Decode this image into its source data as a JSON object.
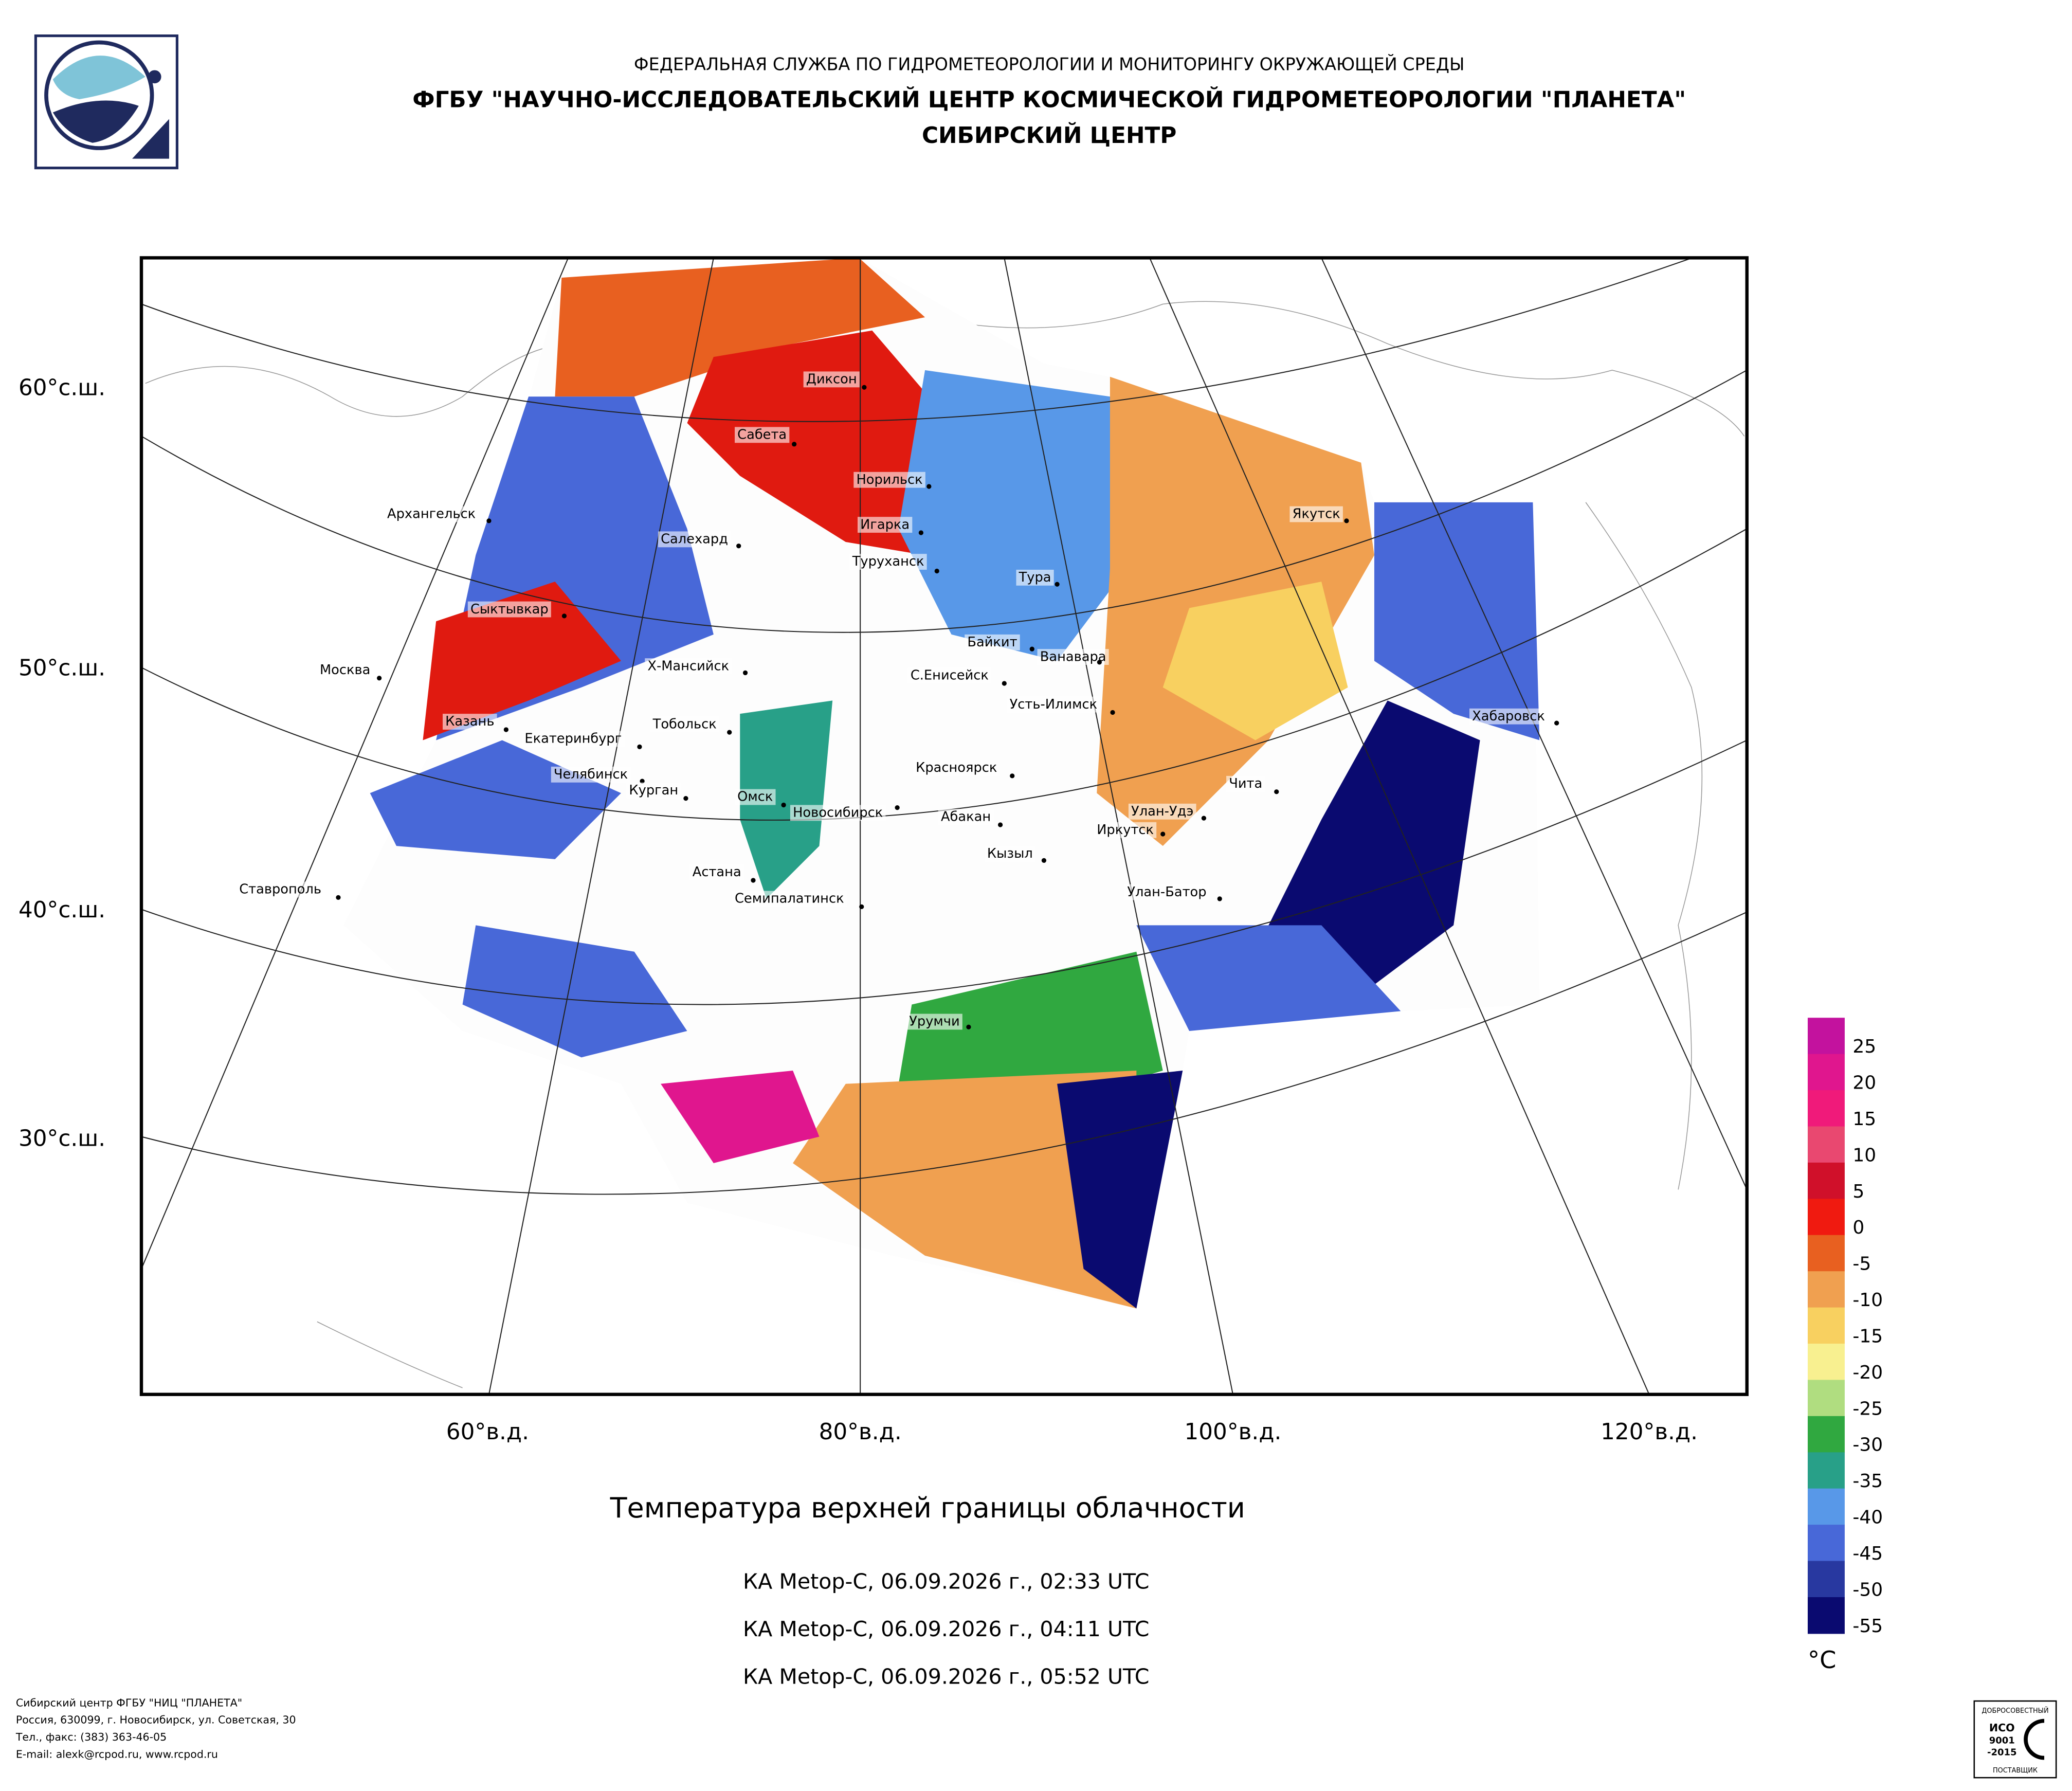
{
  "header": {
    "agency": "ФЕДЕРАЛЬНАЯ СЛУЖБА ПО ГИДРОМЕТЕОРОЛОГИИ И МОНИТОРИНГУ ОКРУЖАЮЩЕЙ СРЕДЫ",
    "center": "ФГБУ \"НАУЧНО-ИССЛЕДОВАТЕЛЬСКИЙ ЦЕНТР КОСМИЧЕСКОЙ ГИДРОМЕТЕОРОЛОГИИ \"ПЛАНЕТА\"",
    "branch": "СИБИРСКИЙ ЦЕНТР"
  },
  "map": {
    "lat_labels": [
      "60°с.ш.",
      "50°с.ш.",
      "40°с.ш.",
      "30°с.ш."
    ],
    "lon_labels": [
      "60°в.д.",
      "80°в.д.",
      "100°в.д.",
      "120°в.д."
    ],
    "cities": [
      "Диксон",
      "Сабета",
      "Норильск",
      "Игарка",
      "Салехард",
      "Архангельск",
      "Туруханск",
      "Тура",
      "Якутск",
      "Сыктывкар",
      "Байкит",
      "Ванавара",
      "Москва",
      "Х-Мансийск",
      "С.Енисейск",
      "Усть-Илимск",
      "Хабаровск",
      "Казань",
      "Тобольск",
      "Екатеринбург",
      "Красноярск",
      "Челябинск",
      "Чита",
      "Курган",
      "Омск",
      "Новосибирск",
      "Улан-Удэ",
      "Абакан",
      "Иркутск",
      "Кызыл",
      "Астана",
      "Ставрополь",
      "Улан-Батор",
      "Семипалатинск",
      "Урумчи"
    ]
  },
  "title": "Температура верхней границы облачности",
  "passes": [
    "КА Metop-C, 06.09.2026 г., 02:33 UTC",
    "КА Metop-C, 06.09.2026 г., 04:11 UTC",
    "КА Metop-C, 06.09.2026 г., 05:52 UTC"
  ],
  "legend": {
    "unit": "°C",
    "ticks": [
      25,
      20,
      15,
      10,
      5,
      0,
      -5,
      -10,
      -15,
      -20,
      -25,
      -30,
      -35,
      -40,
      -45,
      -50,
      -55
    ],
    "colors": [
      "#c3129e",
      "#e0168e",
      "#f01a7a",
      "#e94870",
      "#d0102a",
      "#f01a10",
      "#e86020",
      "#f0a050",
      "#f8d060",
      "#f8f090",
      "#b0dd80",
      "#30a840",
      "#28a088",
      "#5898e8",
      "#4868d8",
      "#2838a0",
      "#0a0a70"
    ]
  },
  "footer": [
    "Сибирский центр ФГБУ \"НИЦ \"ПЛАНЕТА\"",
    "Россия, 630099, г. Новосибирск, ул. Советская, 30",
    "Тел., факс: (383) 363-46-05",
    "E-mail: alexk@rcpod.ru, www.rcpod.ru"
  ],
  "iso_badge": [
    "ДОБРОСОВЕСТНЫЙ",
    "ИСО",
    "9001",
    "-2015",
    "ПОСТАВЩИК"
  ]
}
